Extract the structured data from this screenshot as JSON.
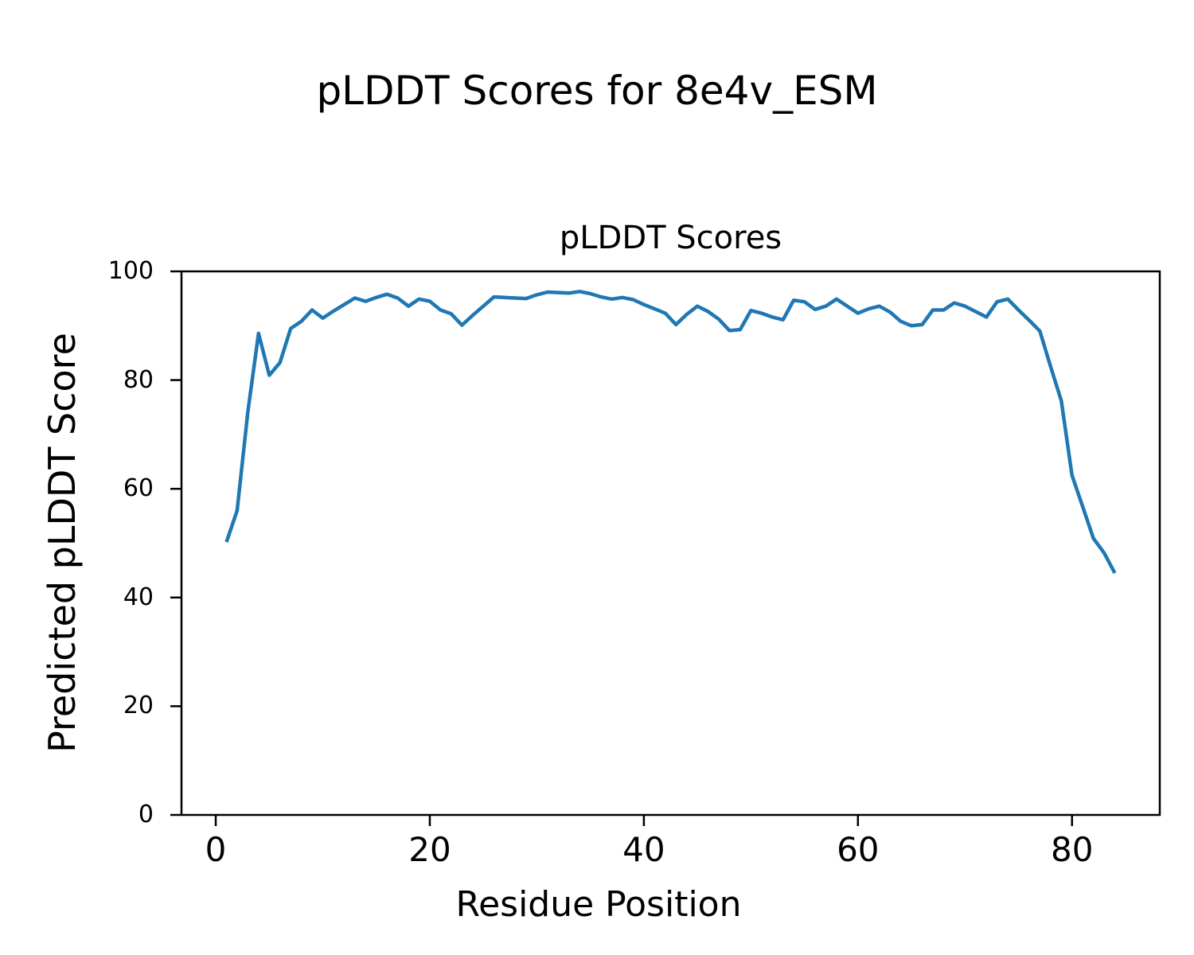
{
  "figure": {
    "suptitle": "pLDDT Scores for 8e4v_ESM",
    "background_color": "#ffffff"
  },
  "chart_data": {
    "type": "line",
    "title": "pLDDT Scores",
    "xlabel": "Residue Position",
    "ylabel": "Predicted pLDDT Score",
    "grid": false,
    "legend": false,
    "line_color": "#1f77b4",
    "axis_color": "#000000",
    "xlim": [
      -3.2,
      88.2
    ],
    "ylim": [
      0,
      100
    ],
    "xticks": [
      0,
      20,
      40,
      60,
      80
    ],
    "yticks": [
      0,
      20,
      40,
      60,
      80,
      100
    ],
    "x": [
      1,
      2,
      3,
      4,
      5,
      6,
      7,
      8,
      9,
      10,
      11,
      12,
      13,
      14,
      15,
      16,
      17,
      18,
      19,
      20,
      21,
      22,
      23,
      24,
      25,
      26,
      27,
      28,
      29,
      30,
      31,
      32,
      33,
      34,
      35,
      36,
      37,
      38,
      39,
      40,
      41,
      42,
      43,
      44,
      45,
      46,
      47,
      48,
      49,
      50,
      51,
      52,
      53,
      54,
      55,
      56,
      57,
      58,
      59,
      60,
      61,
      62,
      63,
      64,
      65,
      66,
      67,
      68,
      69,
      70,
      71,
      72,
      73,
      74,
      75,
      76,
      77,
      78,
      79,
      80,
      81,
      82,
      83,
      84
    ],
    "values": [
      50.2,
      56.0,
      74.2,
      88.6,
      80.9,
      83.2,
      89.5,
      90.8,
      92.9,
      91.4,
      92.7,
      93.9,
      95.1,
      94.5,
      95.2,
      95.8,
      95.1,
      93.6,
      94.9,
      94.5,
      92.9,
      92.2,
      90.1,
      91.9,
      93.6,
      95.3,
      95.2,
      95.1,
      95.0,
      95.7,
      96.2,
      96.1,
      96.0,
      96.3,
      95.9,
      95.3,
      94.9,
      95.2,
      94.8,
      93.9,
      93.1,
      92.3,
      90.2,
      92.1,
      93.6,
      92.6,
      91.2,
      89.1,
      89.3,
      92.8,
      92.3,
      91.6,
      91.1,
      94.7,
      94.4,
      93.0,
      93.6,
      94.9,
      93.6,
      92.3,
      93.1,
      93.6,
      92.5,
      90.8,
      90.0,
      90.2,
      92.9,
      92.9,
      94.2,
      93.6,
      92.6,
      91.6,
      94.4,
      94.9,
      92.9,
      91.0,
      89.0,
      82.5,
      76.2,
      62.5,
      56.7,
      50.9,
      48.2,
      44.5
    ]
  }
}
